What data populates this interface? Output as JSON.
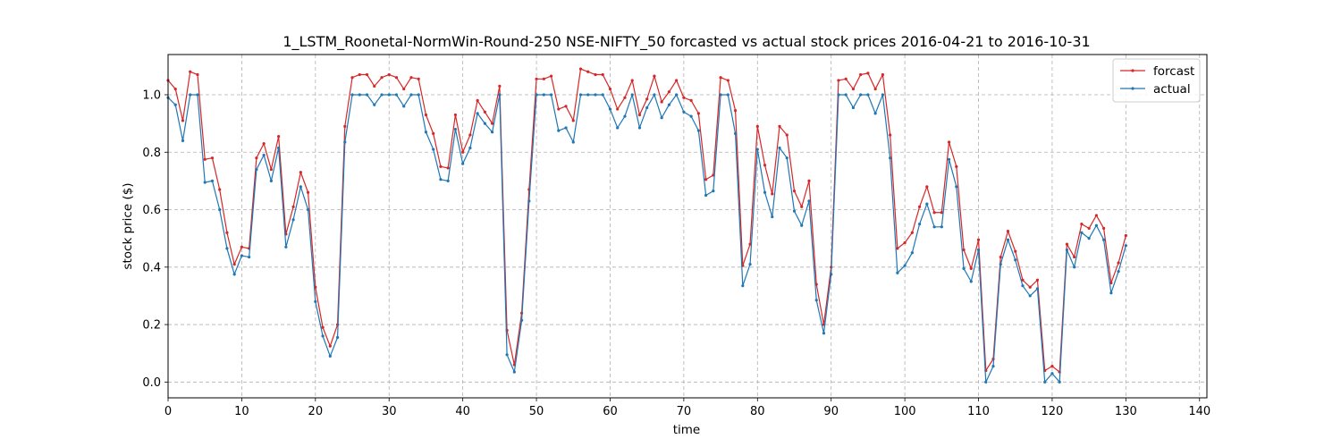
{
  "chart_data": {
    "type": "line",
    "title": "1_LSTM_Roonetal-NormWin-Round-250 NSE-NIFTY_50 forcasted vs actual stock prices 2016-04-21 to 2016-10-31",
    "xlabel": "time",
    "ylabel": "stock price ($)",
    "xlim": [
      0,
      141
    ],
    "ylim": [
      -0.055,
      1.14
    ],
    "xticks": [
      0,
      10,
      20,
      30,
      40,
      50,
      60,
      70,
      80,
      90,
      100,
      110,
      120,
      130,
      140
    ],
    "yticks": [
      0.0,
      0.2,
      0.4,
      0.6,
      0.8,
      1.0
    ],
    "xtick_labels": [
      "0",
      "10",
      "20",
      "30",
      "40",
      "50",
      "60",
      "70",
      "80",
      "90",
      "100",
      "110",
      "120",
      "130",
      "140"
    ],
    "ytick_labels": [
      "0.0",
      "0.2",
      "0.4",
      "0.6",
      "0.8",
      "1.0"
    ],
    "grid": true,
    "legend_position": "top-right",
    "x": [
      0,
      1,
      2,
      3,
      4,
      5,
      6,
      7,
      8,
      9,
      10,
      11,
      12,
      13,
      14,
      15,
      16,
      17,
      18,
      19,
      20,
      21,
      22,
      23,
      24,
      25,
      26,
      27,
      28,
      29,
      30,
      31,
      32,
      33,
      34,
      35,
      36,
      37,
      38,
      39,
      40,
      41,
      42,
      43,
      44,
      45,
      46,
      47,
      48,
      49,
      50,
      51,
      52,
      53,
      54,
      55,
      56,
      57,
      58,
      59,
      60,
      61,
      62,
      63,
      64,
      65,
      66,
      67,
      68,
      69,
      70,
      71,
      72,
      73,
      74,
      75,
      76,
      77,
      78,
      79,
      80,
      81,
      82,
      83,
      84,
      85,
      86,
      87,
      88,
      89,
      90,
      91,
      92,
      93,
      94,
      95,
      96,
      97,
      98,
      99,
      100,
      101,
      102,
      103,
      104,
      105,
      106,
      107,
      108,
      109,
      110,
      111,
      112,
      113,
      114,
      115,
      116,
      117,
      118,
      119,
      120,
      121,
      122,
      123,
      124,
      125,
      126,
      127,
      128,
      129,
      130
    ],
    "series": [
      {
        "name": "forcast",
        "color": "#d62728",
        "values": [
          1.05,
          1.02,
          0.91,
          1.08,
          1.07,
          0.775,
          0.78,
          0.67,
          0.52,
          0.41,
          0.47,
          0.465,
          0.78,
          0.83,
          0.74,
          0.855,
          0.515,
          0.61,
          0.73,
          0.66,
          0.33,
          0.19,
          0.125,
          0.2,
          0.89,
          1.06,
          1.07,
          1.07,
          1.03,
          1.06,
          1.07,
          1.06,
          1.02,
          1.06,
          1.055,
          0.93,
          0.865,
          0.75,
          0.745,
          0.93,
          0.8,
          0.86,
          0.98,
          0.94,
          0.9,
          1.03,
          0.18,
          0.06,
          0.24,
          0.67,
          1.055,
          1.055,
          1.065,
          0.95,
          0.96,
          0.91,
          1.09,
          1.08,
          1.07,
          1.07,
          1.02,
          0.95,
          0.99,
          1.05,
          0.93,
          0.985,
          1.065,
          0.975,
          1.01,
          1.05,
          0.99,
          0.98,
          0.935,
          0.705,
          0.72,
          1.06,
          1.05,
          0.945,
          0.405,
          0.48,
          0.89,
          0.755,
          0.655,
          0.89,
          0.86,
          0.665,
          0.61,
          0.7,
          0.34,
          0.2,
          0.4,
          1.05,
          1.055,
          1.02,
          1.07,
          1.075,
          1.02,
          1.07,
          0.86,
          0.465,
          0.485,
          0.52,
          0.61,
          0.68,
          0.59,
          0.59,
          0.835,
          0.75,
          0.46,
          0.395,
          0.495,
          0.04,
          0.08,
          0.435,
          0.525,
          0.455,
          0.355,
          0.33,
          0.355,
          0.04,
          0.055,
          0.035,
          0.48,
          0.435,
          0.55,
          0.535,
          0.58,
          0.535,
          0.345,
          0.415,
          0.51
        ]
      },
      {
        "name": "actual",
        "color": "#1f77b4",
        "values": [
          0.99,
          0.965,
          0.84,
          1.0,
          1.0,
          0.695,
          0.7,
          0.6,
          0.465,
          0.375,
          0.44,
          0.435,
          0.74,
          0.79,
          0.7,
          0.815,
          0.47,
          0.565,
          0.68,
          0.6,
          0.28,
          0.16,
          0.09,
          0.155,
          0.835,
          1.0,
          1.0,
          1.0,
          0.965,
          1.0,
          1.0,
          1.0,
          0.96,
          1.0,
          1.0,
          0.87,
          0.81,
          0.705,
          0.7,
          0.88,
          0.76,
          0.815,
          0.935,
          0.9,
          0.87,
          1.0,
          0.095,
          0.035,
          0.215,
          0.63,
          1.0,
          1.0,
          1.0,
          0.875,
          0.885,
          0.835,
          1.0,
          1.0,
          1.0,
          1.0,
          0.95,
          0.885,
          0.925,
          1.0,
          0.885,
          0.955,
          1.0,
          0.92,
          0.965,
          1.0,
          0.94,
          0.925,
          0.875,
          0.65,
          0.665,
          1.0,
          1.0,
          0.865,
          0.335,
          0.41,
          0.81,
          0.66,
          0.575,
          0.815,
          0.78,
          0.595,
          0.545,
          0.63,
          0.285,
          0.17,
          0.375,
          1.0,
          1.0,
          0.955,
          1.0,
          1.0,
          0.935,
          1.0,
          0.78,
          0.38,
          0.405,
          0.45,
          0.55,
          0.62,
          0.54,
          0.54,
          0.775,
          0.68,
          0.395,
          0.35,
          0.46,
          0.0,
          0.055,
          0.41,
          0.495,
          0.425,
          0.335,
          0.3,
          0.325,
          0.0,
          0.03,
          0.0,
          0.46,
          0.4,
          0.52,
          0.5,
          0.545,
          0.495,
          0.31,
          0.385,
          0.475
        ]
      }
    ]
  }
}
